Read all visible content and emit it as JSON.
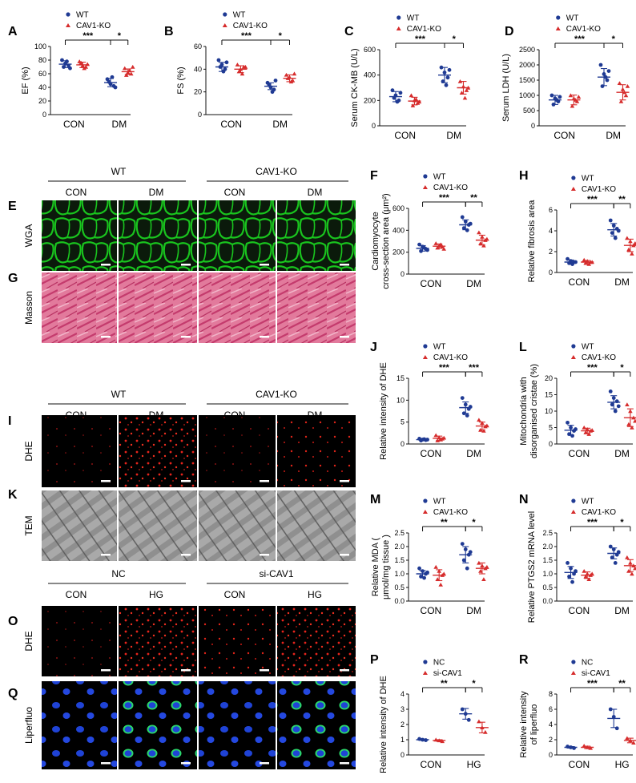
{
  "colors": {
    "wt": "#1f3a93",
    "ko": "#d62c2c",
    "wga": "#19c51e",
    "masson": "#d9527e",
    "dhe": "#e8241c",
    "tem": "#9a9a9a",
    "blue_nuclei": "#1f43d6",
    "green": "#2bd96b"
  },
  "legend": {
    "wt": "WT",
    "ko": "CAV1-KO",
    "nc": "NC",
    "si": "si-CAV1"
  },
  "groups": {
    "con": "CON",
    "dm": "DM",
    "hg": "HG"
  },
  "panel_letters": {
    "A": "A",
    "B": "B",
    "C": "C",
    "D": "D",
    "E": "E",
    "F": "F",
    "G": "G",
    "H": "H",
    "I": "I",
    "J": "J",
    "K": "K",
    "L": "L",
    "M": "M",
    "N": "N",
    "O": "O",
    "P": "P",
    "Q": "Q",
    "R": "R"
  },
  "image_labels": {
    "wga": "WGA",
    "masson": "Masson",
    "dhe": "DHE",
    "tem": "TEM",
    "liperfluo": "Liperfluo"
  },
  "image_headers": {
    "wt": "WT",
    "ko": "CAV1-KO",
    "nc": "NC",
    "si": "si-CAV1",
    "con": "CON",
    "dm": "DM",
    "hg": "HG"
  },
  "chart_data": [
    {
      "id": "A",
      "type": "scatter",
      "ylabel": "EF (%)",
      "yticks": [
        "0",
        "20",
        "40",
        "60",
        "80",
        "100"
      ],
      "ylim": [
        0,
        100
      ],
      "categories": [
        "CON",
        "DM"
      ],
      "legend": [
        "WT",
        "CAV1-KO"
      ],
      "series": [
        {
          "name": "WT",
          "groups": [
            [
              80,
              75,
              72,
              70,
              78,
              68
            ],
            [
              52,
              45,
              42,
              48,
              55,
              40
            ]
          ],
          "mean": [
            74,
            47
          ],
          "sd": [
            5,
            6
          ]
        },
        {
          "name": "CAV1-KO",
          "groups": [
            [
              78,
              72,
              70,
              76,
              68,
              74
            ],
            [
              68,
              62,
              60,
              58,
              65,
              70
            ]
          ],
          "mean": [
            73,
            63
          ],
          "sd": [
            4,
            4
          ]
        }
      ],
      "sig": [
        {
          "label": "***",
          "from": 0,
          "to": 2
        },
        {
          "label": "*",
          "from": 2,
          "to": 3
        }
      ]
    },
    {
      "id": "B",
      "type": "scatter",
      "ylabel": "FS (%)",
      "yticks": [
        "0",
        "20",
        "40",
        "60"
      ],
      "ylim": [
        0,
        60
      ],
      "categories": [
        "CON",
        "DM"
      ],
      "legend": [
        "WT",
        "CAV1-KO"
      ],
      "series": [
        {
          "name": "WT",
          "groups": [
            [
              48,
              44,
              40,
              42,
              38,
              46
            ],
            [
              28,
              24,
              22,
              26,
              20,
              30
            ]
          ],
          "mean": [
            42,
            25
          ],
          "sd": [
            4,
            3
          ]
        },
        {
          "name": "CAV1-KO",
          "groups": [
            [
              44,
              40,
              42,
              38,
              36,
              42
            ],
            [
              35,
              33,
              30,
              32,
              29,
              36
            ]
          ],
          "mean": [
            40,
            32
          ],
          "sd": [
            3,
            3
          ]
        }
      ],
      "sig": [
        {
          "label": "***",
          "from": 0,
          "to": 2
        },
        {
          "label": "*",
          "from": 2,
          "to": 3
        }
      ]
    },
    {
      "id": "C",
      "type": "scatter",
      "ylabel": "Serum CK-MB (U/L)",
      "yticks": [
        "0",
        "200",
        "400",
        "600"
      ],
      "ylim": [
        0,
        600
      ],
      "categories": [
        "CON",
        "DM"
      ],
      "legend": [
        "WT",
        "CAV1-KO"
      ],
      "series": [
        {
          "name": "WT",
          "groups": [
            [
              280,
              240,
              200,
              220,
              190,
              260
            ],
            [
              460,
              420,
              380,
              350,
              320,
              440
            ]
          ],
          "mean": [
            230,
            400
          ],
          "sd": [
            40,
            60
          ]
        },
        {
          "name": "CAV1-KO",
          "groups": [
            [
              240,
              200,
              180,
              160,
              210,
              190
            ],
            [
              350,
              310,
              280,
              260,
              220,
              300
            ]
          ],
          "mean": [
            195,
            300
          ],
          "sd": [
            30,
            50
          ]
        }
      ],
      "sig": [
        {
          "label": "***",
          "from": 0,
          "to": 2
        },
        {
          "label": "*",
          "from": 2,
          "to": 3
        }
      ]
    },
    {
      "id": "D",
      "type": "scatter",
      "ylabel": "Serum LDH (U/L)",
      "yticks": [
        "0",
        "500",
        "1000",
        "1500",
        "2000",
        "2500"
      ],
      "ylim": [
        0,
        2500
      ],
      "categories": [
        "CON",
        "DM"
      ],
      "legend": [
        "WT",
        "CAV1-KO"
      ],
      "series": [
        {
          "name": "WT",
          "groups": [
            [
              1000,
              900,
              800,
              700,
              850,
              950
            ],
            [
              2000,
              1700,
              1500,
              1300,
              1600,
              1800
            ]
          ],
          "mean": [
            850,
            1600
          ],
          "sd": [
            150,
            280
          ]
        },
        {
          "name": "CAV1-KO",
          "groups": [
            [
              1000,
              900,
              800,
              650,
              850,
              950
            ],
            [
              1400,
              1200,
              1000,
              800,
              1100,
              1300
            ]
          ],
          "mean": [
            850,
            1100
          ],
          "sd": [
            160,
            250
          ]
        }
      ],
      "sig": [
        {
          "label": "***",
          "from": 0,
          "to": 2
        },
        {
          "label": "*",
          "from": 2,
          "to": 3
        }
      ]
    },
    {
      "id": "F",
      "type": "scatter",
      "ylabel": "Cardiomyocyte cross-section area (μm²)",
      "yticks": [
        "0",
        "200",
        "400",
        "600"
      ],
      "ylim": [
        0,
        600
      ],
      "categories": [
        "CON",
        "DM"
      ],
      "legend": [
        "WT",
        "CAV1-KO"
      ],
      "series": [
        {
          "name": "WT",
          "groups": [
            [
              270,
              250,
              230,
              210,
              240,
              220
            ],
            [
              520,
              480,
              450,
              420,
              400,
              460
            ]
          ],
          "mean": [
            235,
            450
          ],
          "sd": [
            25,
            45
          ]
        },
        {
          "name": "CAV1-KO",
          "groups": [
            [
              280,
              260,
              250,
              240,
              270,
              230
            ],
            [
              380,
              340,
              310,
              280,
              260,
              320
            ]
          ],
          "mean": [
            255,
            310
          ],
          "sd": [
            20,
            45
          ]
        }
      ],
      "sig": [
        {
          "label": "***",
          "from": 0,
          "to": 2
        },
        {
          "label": "**",
          "from": 2,
          "to": 3
        }
      ]
    },
    {
      "id": "H",
      "type": "scatter",
      "ylabel": "Relative fibrosis area",
      "yticks": [
        "0",
        "2",
        "4",
        "6"
      ],
      "ylim": [
        0,
        6
      ],
      "categories": [
        "CON",
        "DM"
      ],
      "legend": [
        "WT",
        "CAV1-KO"
      ],
      "series": [
        {
          "name": "WT",
          "groups": [
            [
              1.3,
              1.1,
              1.0,
              0.9,
              0.8,
              1.0
            ],
            [
              5.0,
              4.5,
              4.2,
              3.8,
              3.3,
              4.0
            ]
          ],
          "mean": [
            1.0,
            4.1
          ],
          "sd": [
            0.2,
            0.6
          ]
        },
        {
          "name": "CAV1-KO",
          "groups": [
            [
              1.2,
              1.1,
              1.0,
              0.9,
              0.8,
              1.0
            ],
            [
              3.3,
              3.0,
              2.6,
              2.2,
              1.8,
              2.8
            ]
          ],
          "mean": [
            1.0,
            2.6
          ],
          "sd": [
            0.15,
            0.6
          ]
        }
      ],
      "sig": [
        {
          "label": "***",
          "from": 0,
          "to": 2
        },
        {
          "label": "**",
          "from": 2,
          "to": 3
        }
      ]
    },
    {
      "id": "J",
      "type": "scatter",
      "ylabel": "Relative intensity of DHE",
      "yticks": [
        "0",
        "5",
        "10",
        "15"
      ],
      "ylim": [
        0,
        15
      ],
      "categories": [
        "CON",
        "DM"
      ],
      "legend": [
        "WT",
        "CAV1-KO"
      ],
      "series": [
        {
          "name": "WT",
          "groups": [
            [
              1.2,
              1.0,
              0.9,
              0.8,
              1.1,
              1.0
            ],
            [
              10.5,
              9.0,
              8.0,
              7.0,
              6.5,
              8.5
            ]
          ],
          "mean": [
            1.0,
            8.3
          ],
          "sd": [
            0.2,
            1.3
          ]
        },
        {
          "name": "CAV1-KO",
          "groups": [
            [
              2.0,
              1.5,
              1.2,
              0.8,
              1.0,
              1.4
            ],
            [
              5.5,
              4.8,
              4.0,
              3.2,
              3.0,
              4.2
            ]
          ],
          "mean": [
            1.3,
            4.1
          ],
          "sd": [
            0.5,
            0.9
          ]
        }
      ],
      "sig": [
        {
          "label": "***",
          "from": 0,
          "to": 2
        },
        {
          "label": "***",
          "from": 2,
          "to": 3
        }
      ]
    },
    {
      "id": "L",
      "type": "scatter",
      "ylabel": "Mitochondria with disorganised cristae (%)",
      "yticks": [
        "0",
        "5",
        "10",
        "15",
        "20"
      ],
      "ylim": [
        0,
        20
      ],
      "categories": [
        "CON",
        "DM"
      ],
      "legend": [
        "WT",
        "CAV1-KO"
      ],
      "series": [
        {
          "name": "WT",
          "groups": [
            [
              6.5,
              5.0,
              4.0,
              3.0,
              2.5,
              4.5
            ],
            [
              16,
              14,
              13,
              12,
              10,
              11.5
            ]
          ],
          "mean": [
            4.2,
            12.7
          ],
          "sd": [
            1.5,
            2.0
          ]
        },
        {
          "name": "CAV1-KO",
          "groups": [
            [
              5.0,
              4.5,
              4.0,
              3.5,
              3.0,
              4.2
            ],
            [
              12,
              10,
              8,
              6,
              5,
              7
            ]
          ],
          "mean": [
            4.0,
            8.0
          ],
          "sd": [
            0.8,
            2.7
          ]
        }
      ],
      "sig": [
        {
          "label": "***",
          "from": 0,
          "to": 2
        },
        {
          "label": "*",
          "from": 2,
          "to": 3
        }
      ]
    },
    {
      "id": "M",
      "type": "scatter",
      "ylabel": "Relative MDA ( μmol/mg tissue )",
      "yticks": [
        "0.0",
        "0.5",
        "1.0",
        "1.5",
        "2.0",
        "2.5"
      ],
      "ylim": [
        0,
        2.5
      ],
      "categories": [
        "CON",
        "DM"
      ],
      "legend": [
        "WT",
        "CAV1-KO"
      ],
      "series": [
        {
          "name": "WT",
          "groups": [
            [
              1.2,
              1.1,
              1.0,
              0.9,
              0.85,
              1.05
            ],
            [
              2.1,
              1.9,
              1.7,
              1.5,
              1.2,
              1.8
            ]
          ],
          "mean": [
            1.0,
            1.7
          ],
          "sd": [
            0.12,
            0.3
          ]
        },
        {
          "name": "CAV1-KO",
          "groups": [
            [
              1.25,
              1.1,
              0.95,
              0.8,
              0.6,
              1.0
            ],
            [
              1.4,
              1.3,
              1.2,
              1.1,
              0.8,
              1.25
            ]
          ],
          "mean": [
            0.95,
            1.2
          ],
          "sd": [
            0.2,
            0.2
          ]
        }
      ],
      "sig": [
        {
          "label": "**",
          "from": 0,
          "to": 2
        },
        {
          "label": "*",
          "from": 2,
          "to": 3
        }
      ]
    },
    {
      "id": "N",
      "type": "scatter",
      "ylabel": "Relative PTGS2 mRNA level",
      "yticks": [
        "0.0",
        "0.5",
        "1.0",
        "1.5",
        "2.0",
        "2.5"
      ],
      "ylim": [
        0,
        2.5
      ],
      "categories": [
        "CON",
        "DM"
      ],
      "legend": [
        "WT",
        "CAV1-KO"
      ],
      "series": [
        {
          "name": "WT",
          "groups": [
            [
              1.4,
              1.2,
              1.0,
              0.9,
              0.7,
              1.1
            ],
            [
              2.0,
              1.9,
              1.7,
              1.6,
              1.4,
              1.8
            ]
          ],
          "mean": [
            1.05,
            1.75
          ],
          "sd": [
            0.22,
            0.2
          ]
        },
        {
          "name": "CAV1-KO",
          "groups": [
            [
              1.1,
              1.0,
              0.95,
              0.9,
              0.8,
              1.0
            ],
            [
              1.6,
              1.4,
              1.3,
              1.1,
              1.0,
              1.2
            ]
          ],
          "mean": [
            0.95,
            1.3
          ],
          "sd": [
            0.12,
            0.22
          ]
        }
      ],
      "sig": [
        {
          "label": "***",
          "from": 0,
          "to": 2
        },
        {
          "label": "*",
          "from": 2,
          "to": 3
        }
      ]
    },
    {
      "id": "P",
      "type": "scatter",
      "ylabel": "Relative intensity of DHE",
      "yticks": [
        "0",
        "1",
        "2",
        "3",
        "4"
      ],
      "ylim": [
        0,
        4
      ],
      "categories": [
        "CON",
        "HG"
      ],
      "legend": [
        "NC",
        "si-CAV1"
      ],
      "series": [
        {
          "name": "NC",
          "groups": [
            [
              1.05,
              1.0,
              0.97
            ],
            [
              3.0,
              2.7,
              2.3
            ]
          ],
          "mean": [
            1.0,
            2.7
          ],
          "sd": [
            0.04,
            0.35
          ]
        },
        {
          "name": "si-CAV1",
          "groups": [
            [
              1.0,
              0.95,
              0.9
            ],
            [
              2.2,
              1.8,
              1.5
            ]
          ],
          "mean": [
            0.95,
            1.8
          ],
          "sd": [
            0.05,
            0.35
          ]
        }
      ],
      "sig": [
        {
          "label": "**",
          "from": 0,
          "to": 2
        },
        {
          "label": "*",
          "from": 2,
          "to": 3
        }
      ]
    },
    {
      "id": "R",
      "type": "scatter",
      "ylabel": "Relative intensity of liperfluo",
      "yticks": [
        "0",
        "2",
        "4",
        "6",
        "8"
      ],
      "ylim": [
        0,
        8
      ],
      "categories": [
        "CON",
        "HG"
      ],
      "legend": [
        "NC",
        "si-CAV1"
      ],
      "series": [
        {
          "name": "NC",
          "groups": [
            [
              1.1,
              1.0,
              0.9
            ],
            [
              6.0,
              5.0,
              3.5
            ]
          ],
          "mean": [
            1.0,
            4.8
          ],
          "sd": [
            0.1,
            1.2
          ]
        },
        {
          "name": "si-CAV1",
          "groups": [
            [
              1.2,
              1.0,
              0.9
            ],
            [
              2.2,
              1.9,
              1.6
            ]
          ],
          "mean": [
            1.0,
            1.9
          ],
          "sd": [
            0.15,
            0.3
          ]
        }
      ],
      "sig": [
        {
          "label": "***",
          "from": 0,
          "to": 2
        },
        {
          "label": "**",
          "from": 2,
          "to": 3
        }
      ]
    }
  ]
}
